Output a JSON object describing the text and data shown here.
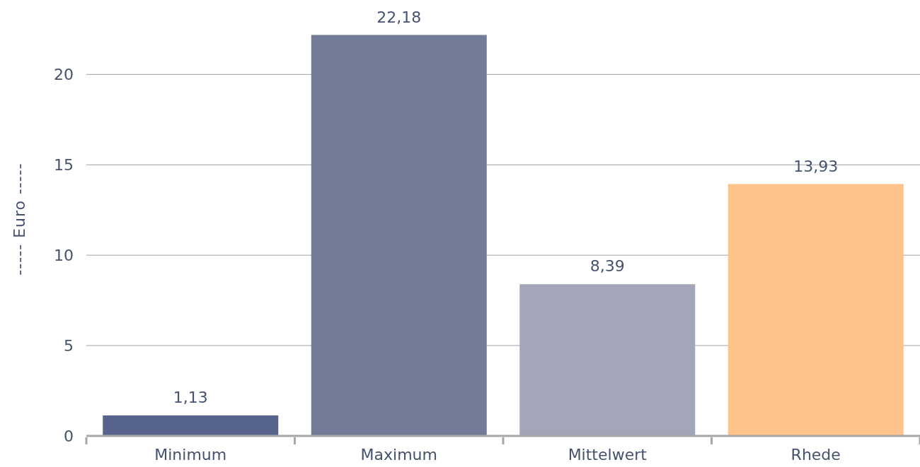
{
  "chart_data": {
    "type": "bar",
    "ylabel": "----- Euro -----",
    "categories": [
      "Minimum",
      "Maximum",
      "Mittelwert",
      "Rhede"
    ],
    "values": [
      1.13,
      22.18,
      8.39,
      13.93
    ],
    "colors": [
      "#56638d",
      "#737c97",
      "#a3a6b8",
      "#fdc38b"
    ],
    "value_labels": [
      "1,13",
      "22,18",
      "8,39",
      "13,93"
    ],
    "ylim": [
      0,
      24
    ],
    "yticks": [
      0,
      5,
      10,
      15,
      20
    ],
    "grid": "y"
  }
}
